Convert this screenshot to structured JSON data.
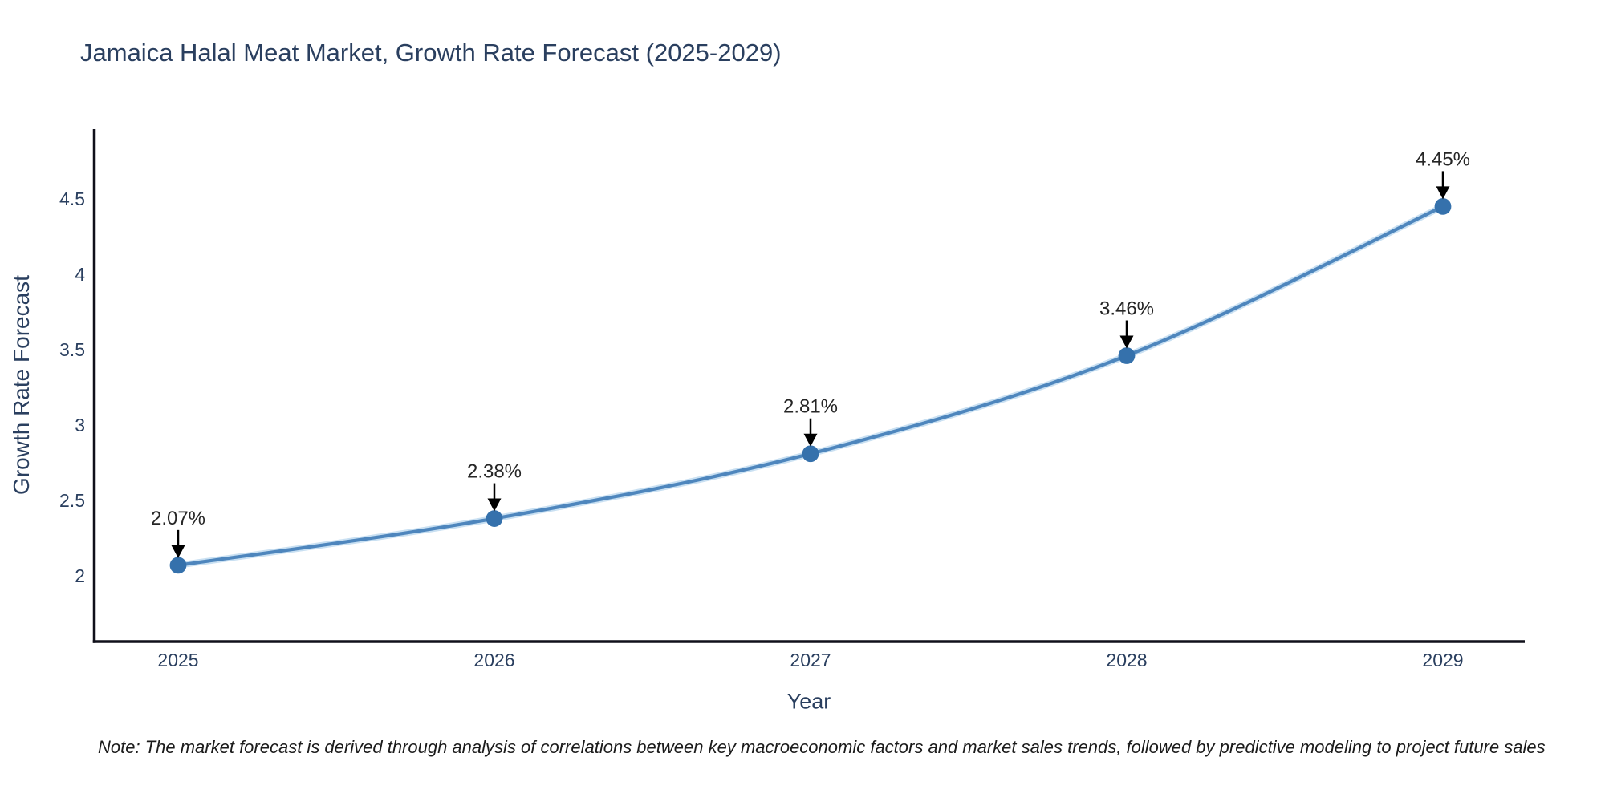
{
  "title": "Jamaica Halal Meat Market, Growth Rate Forecast (2025-2029)",
  "note": "Note: The market forecast is derived through analysis of correlations between key macroeconomic factors and market sales trends, followed by predictive modeling to project future sales",
  "chart_data": {
    "type": "line",
    "title": "Jamaica Halal Meat Market, Growth Rate Forecast (2025-2029)",
    "xlabel": "Year",
    "ylabel": "Growth Rate Forecast",
    "x": [
      2025,
      2026,
      2027,
      2028,
      2029
    ],
    "series": [
      {
        "name": "Growth Rate Forecast",
        "values": [
          2.07,
          2.38,
          2.81,
          3.46,
          4.45
        ]
      }
    ],
    "annotations": [
      "2.07%",
      "2.38%",
      "2.81%",
      "3.46%",
      "4.45%"
    ],
    "x_ticks": [
      "2025",
      "2026",
      "2027",
      "2028",
      "2029"
    ],
    "y_ticks": [
      2,
      2.5,
      3,
      3.5,
      4,
      4.5
    ],
    "ylim": [
      1.56,
      4.97
    ],
    "grid": false,
    "legend": "none",
    "curve": "spline",
    "colors": {
      "line": "#4e86bd",
      "line_halo": "#c9e0f2",
      "marker": "#3571ac",
      "axis": "#10101a",
      "axis_text": "#2a3f5f",
      "annotation_text": "#262626",
      "title_text": "#2a3f5f",
      "note_text": "#1b1b1b"
    }
  }
}
